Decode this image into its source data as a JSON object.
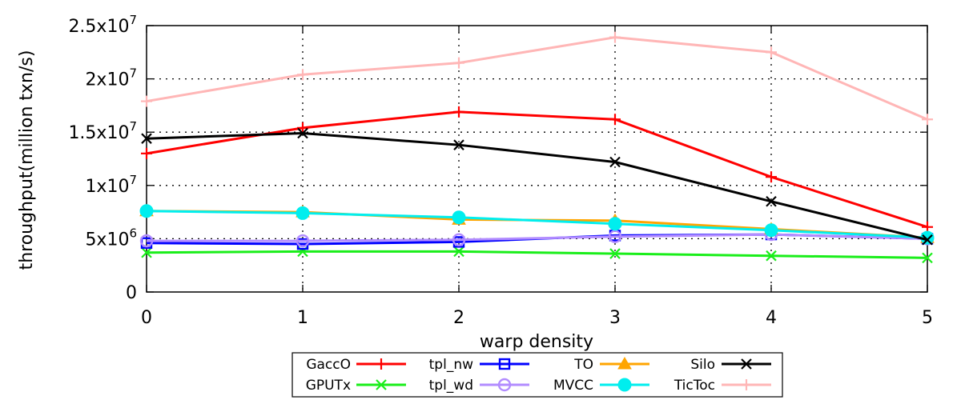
{
  "chart_data": {
    "type": "line",
    "xlabel": "warp density",
    "ylabel": "throughput(million txn/s)",
    "x": [
      0,
      1,
      2,
      3,
      4,
      5
    ],
    "xlim": [
      0,
      5
    ],
    "ylim": [
      0,
      25000000
    ],
    "y_ticks": [
      {
        "value": 0,
        "base": "0",
        "exp": ""
      },
      {
        "value": 5000000,
        "base": "5x10",
        "exp": "6"
      },
      {
        "value": 10000000,
        "base": "1x10",
        "exp": "7"
      },
      {
        "value": 15000000,
        "base": "1.5x10",
        "exp": "7"
      },
      {
        "value": 20000000,
        "base": "2x10",
        "exp": "7"
      },
      {
        "value": 25000000,
        "base": "2.5x10",
        "exp": "7"
      }
    ],
    "x_ticks": [
      "0",
      "1",
      "2",
      "3",
      "4",
      "5"
    ],
    "grid": "dotted horizontal and vertical",
    "legend_position": "bottom, outside plot",
    "series": [
      {
        "name": "GaccO",
        "color": "#ff0000",
        "marker": "plus",
        "values": [
          13000000,
          15400000,
          16900000,
          16200000,
          10800000,
          6100000
        ]
      },
      {
        "name": "GPUTx",
        "color": "#1aee1a",
        "marker": "x",
        "values": [
          3700000,
          3800000,
          3800000,
          3600000,
          3400000,
          3200000
        ]
      },
      {
        "name": "tpl_nw",
        "color": "#0000ff",
        "marker": "square",
        "values": [
          4600000,
          4500000,
          4700000,
          5300000,
          5400000,
          5000000
        ]
      },
      {
        "name": "tpl_wd",
        "color": "#b28cff",
        "marker": "circle",
        "values": [
          4800000,
          4800000,
          4900000,
          5200000,
          5400000,
          5000000
        ]
      },
      {
        "name": "TO",
        "color": "#ffa500",
        "marker": "triangle",
        "values": [
          7600000,
          7500000,
          6800000,
          6700000,
          5900000,
          5100000
        ]
      },
      {
        "name": "MVCC",
        "color": "#00eeee",
        "marker": "filled-circle",
        "values": [
          7600000,
          7400000,
          7000000,
          6400000,
          5800000,
          5100000
        ]
      },
      {
        "name": "Silo",
        "color": "#000000",
        "marker": "x",
        "values": [
          14400000,
          14900000,
          13800000,
          12200000,
          8500000,
          4900000
        ]
      },
      {
        "name": "TicToc",
        "color": "#ffb6b6",
        "marker": "plus",
        "values": [
          17900000,
          20400000,
          21500000,
          23900000,
          22500000,
          16200000
        ]
      }
    ]
  }
}
